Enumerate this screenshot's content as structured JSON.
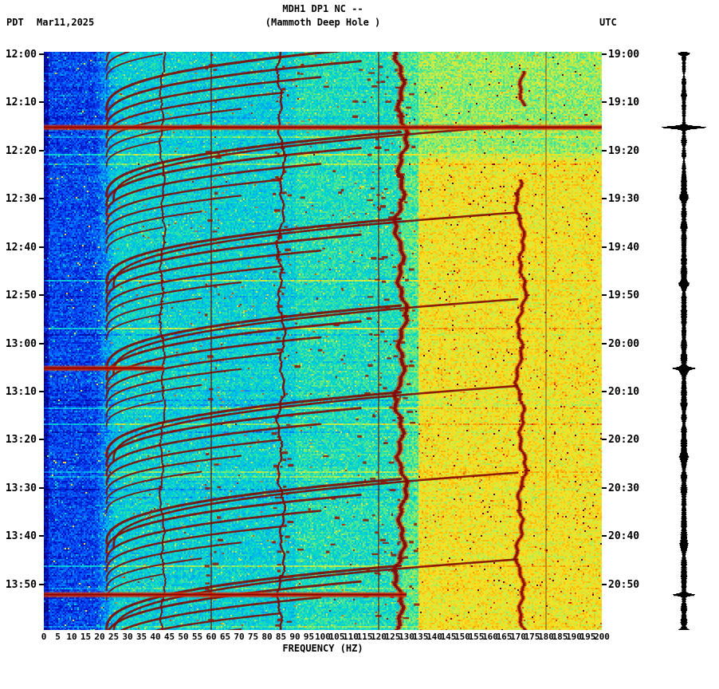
{
  "header": {
    "station": "MDH1 DP1 NC --",
    "subtitle": "(Mammoth Deep Hole )",
    "tz_left": "PDT",
    "date": "Mar11,2025",
    "tz_right": "UTC"
  },
  "chart_data": {
    "type": "heatmap",
    "title": "MDH1 DP1 NC -- (Mammoth Deep Hole )",
    "xlabel": "FREQUENCY (HZ)",
    "xlim": [
      0,
      200
    ],
    "x_ticks": [
      0,
      5,
      10,
      15,
      20,
      25,
      30,
      35,
      40,
      45,
      50,
      55,
      60,
      65,
      70,
      75,
      80,
      85,
      90,
      95,
      100,
      105,
      110,
      115,
      120,
      125,
      130,
      135,
      140,
      145,
      150,
      155,
      160,
      165,
      170,
      175,
      180,
      185,
      190,
      195,
      200
    ],
    "time_start_left": "12:00",
    "time_start_right": "19:00",
    "time_span_min": 120,
    "left_time_ticks": [
      "12:00",
      "12:10",
      "12:20",
      "12:30",
      "12:40",
      "12:50",
      "13:00",
      "13:10",
      "13:20",
      "13:30",
      "13:40",
      "13:50"
    ],
    "right_time_ticks": [
      "19:00",
      "19:10",
      "19:20",
      "19:30",
      "19:40",
      "19:50",
      "20:00",
      "20:10",
      "20:20",
      "20:30",
      "20:40",
      "20:50"
    ],
    "grid": false,
    "legend": "none",
    "palette": [
      [
        0,
        [
          0,
          0,
          120
        ]
      ],
      [
        0.1,
        [
          0,
          20,
          200
        ]
      ],
      [
        0.2,
        [
          0,
          90,
          255
        ]
      ],
      [
        0.3,
        [
          0,
          180,
          235
        ]
      ],
      [
        0.38,
        [
          0,
          215,
          205
        ]
      ],
      [
        0.48,
        [
          110,
          235,
          120
        ]
      ],
      [
        0.58,
        [
          215,
          235,
          60
        ]
      ],
      [
        0.66,
        [
          255,
          220,
          30
        ]
      ],
      [
        0.75,
        [
          255,
          160,
          0
        ]
      ],
      [
        0.85,
        [
          230,
          60,
          0
        ]
      ],
      [
        0.93,
        [
          170,
          10,
          0
        ]
      ],
      [
        1,
        [
          110,
          0,
          0
        ]
      ]
    ],
    "features": {
      "power_lines": [
        {
          "freq": 60,
          "width": 1.6,
          "alpha": 0.75
        },
        {
          "freq": 120,
          "width": 1.6,
          "alpha": 0.7
        },
        {
          "freq": 180,
          "width": 1.3,
          "alpha": 0.55
        }
      ],
      "harmonic_lines": [
        {
          "freq": 42.5,
          "width": 2.0,
          "amp": 1.2,
          "segments": [
            [
              0,
              120
            ]
          ]
        },
        {
          "freq": 85,
          "width": 2.6,
          "amp": 1.8,
          "segments": [
            [
              0,
              120
            ]
          ]
        },
        {
          "freq": 128,
          "width": 4.5,
          "amp": 2.6,
          "glow": 9,
          "segments": [
            [
              0,
              120
            ]
          ]
        },
        {
          "freq": 171,
          "width": 3.5,
          "amp": 2.2,
          "glow": 7,
          "segments": [
            [
              4,
              11
            ],
            [
              26.5,
              120
            ]
          ]
        }
      ],
      "arc_events": [
        -6,
        12,
        30,
        48,
        66,
        84,
        102,
        120
      ],
      "broadband_events": [
        {
          "t": 15.6,
          "f0": 0,
          "f1": 200
        },
        {
          "t": 65.6,
          "f0": 0,
          "f1": 43
        },
        {
          "t": 112.6,
          "f0": 0,
          "f1": 130
        }
      ],
      "yellow_band_start_freq": 134,
      "yellow_band_onset_min": 21,
      "seis_spikes": [
        {
          "t": 15.6,
          "a": 26,
          "w": 0.35
        },
        {
          "t": 65.6,
          "a": 9,
          "w": 0.3
        },
        {
          "t": 112.6,
          "a": 11,
          "w": 0.3
        },
        {
          "t": 0.3,
          "a": 5,
          "w": 0.3
        },
        {
          "t": 30,
          "a": 3,
          "w": 0.8
        },
        {
          "t": 48,
          "a": 3,
          "w": 0.8
        },
        {
          "t": 66,
          "a": 3,
          "w": 0.8
        },
        {
          "t": 84,
          "a": 3,
          "w": 0.8
        },
        {
          "t": 102,
          "a": 3,
          "w": 0.8
        },
        {
          "t": 120,
          "a": 4,
          "w": 0.5
        }
      ],
      "seis_marks": [
        {
          "t": 15.6,
          "len": 34
        },
        {
          "t": 65.6,
          "len": 22
        },
        {
          "t": 112.6,
          "len": 26
        }
      ]
    }
  }
}
